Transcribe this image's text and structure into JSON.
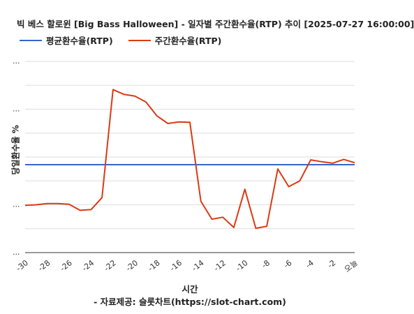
{
  "chart_data": {
    "type": "line",
    "title": "빅 베스 할로윈 [Big Bass Halloween] - 일자별 주간환수율(RTP) 추이 [2025-07-27 16:00:00]",
    "xlabel": "시간",
    "ylabel": "당일환수율 %",
    "source": "- 자료제공: 슬롯차트(https://slot-chart.com)",
    "x_tick_labels": [
      "-30",
      "-28",
      "-26",
      "-24",
      "-22",
      "-20",
      "-18",
      "-16",
      "-14",
      "-12",
      "-10",
      "-8",
      "-6",
      "-4",
      "-2",
      "오늘"
    ],
    "x": [
      -30,
      -29,
      -28,
      -27,
      -26,
      -25,
      -24,
      -23,
      -22,
      -21,
      -20,
      -19,
      -18,
      -17,
      -16,
      -15,
      -14,
      -13,
      -12,
      -11,
      -10,
      -9,
      -8,
      -7,
      -6,
      -5,
      -4,
      -3,
      -2,
      -1,
      0
    ],
    "xlim": [
      -30,
      0
    ],
    "ylim": [
      0,
      8
    ],
    "grid": true,
    "legend_position": "top-left",
    "series": [
      {
        "name": "평균환수율(RTP)",
        "color": "#3366cc",
        "values": [
          3.68,
          3.68,
          3.68,
          3.68,
          3.68,
          3.68,
          3.68,
          3.68,
          3.68,
          3.68,
          3.68,
          3.68,
          3.68,
          3.68,
          3.68,
          3.68,
          3.68,
          3.68,
          3.68,
          3.68,
          3.68,
          3.68,
          3.68,
          3.68,
          3.68,
          3.68,
          3.68,
          3.68,
          3.68,
          3.68,
          3.68
        ]
      },
      {
        "name": "주간환수율(RTP)",
        "color": "#dc3912",
        "values": [
          1.98,
          2.0,
          2.05,
          2.05,
          2.02,
          1.77,
          1.8,
          2.3,
          6.82,
          6.62,
          6.55,
          6.3,
          5.72,
          5.4,
          5.47,
          5.45,
          2.15,
          1.4,
          1.48,
          1.05,
          2.65,
          1.02,
          1.1,
          3.5,
          2.76,
          3.0,
          3.88,
          3.8,
          3.74,
          3.9,
          3.76
        ]
      }
    ]
  }
}
